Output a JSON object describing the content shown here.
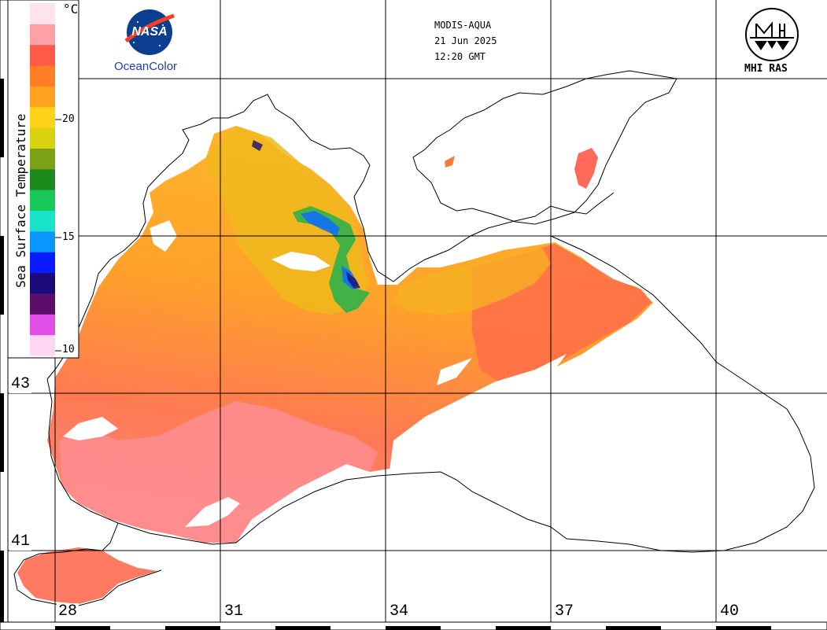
{
  "header": {
    "sensor": "MODIS-AQUA",
    "date": "21 Jun 2025",
    "time": "12:20 GMT"
  },
  "logos": {
    "nasa_word": "NASA",
    "oceancolor": "OceanColor",
    "mhi": "MHI RAS"
  },
  "colorbar": {
    "title": "Sea Surface Temperature",
    "unit": "°C",
    "ticks": [
      "20",
      "15",
      "10"
    ],
    "range": [
      10,
      25
    ],
    "colors": [
      "#ffd7f5",
      "#e24ee8",
      "#5b0f6b",
      "#1d0a7a",
      "#0b1bff",
      "#0a96ff",
      "#19e3c9",
      "#19c85a",
      "#1c8a1d",
      "#7aa214",
      "#d8d20f",
      "#ffd21a",
      "#ffa31f",
      "#ff7e25",
      "#ff5a47",
      "#ff9fa6",
      "#ffe4ec"
    ]
  },
  "grid": {
    "lon_labels": [
      "28",
      "31",
      "34",
      "37",
      "40"
    ],
    "lat_labels": [
      "43",
      "41"
    ]
  }
}
